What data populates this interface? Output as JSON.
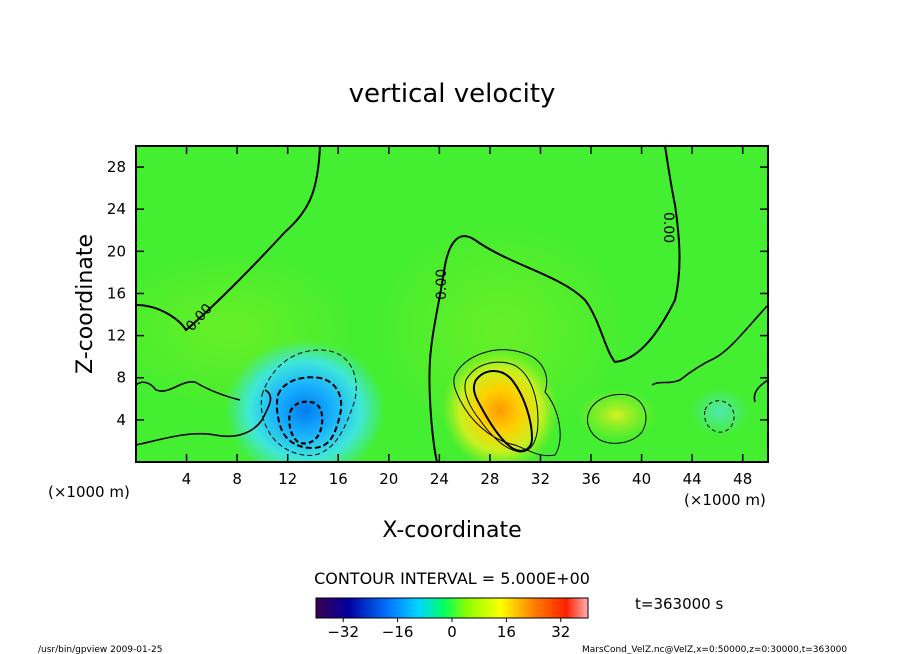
{
  "chart_data": {
    "type": "heatmap",
    "title": "vertical velocity",
    "xlabel": "X-coordinate",
    "ylabel": "Z-coordinate",
    "x_unit": "(×1000 m)",
    "y_unit": "(×1000 m)",
    "x_range": [
      0,
      50
    ],
    "y_range": [
      0,
      30
    ],
    "x_ticks": [
      4,
      8,
      12,
      16,
      20,
      24,
      28,
      32,
      36,
      40,
      44,
      48
    ],
    "y_ticks": [
      4,
      8,
      12,
      16,
      20,
      24,
      28
    ],
    "contour_interval": "CONTOUR INTERVAL = 5.000E+00",
    "contour_labels": [
      "0.00",
      "0.00",
      "0.00"
    ],
    "colorbar": {
      "range": [
        -40,
        40
      ],
      "ticks": [
        -32,
        -16,
        0,
        16,
        32
      ],
      "colors": [
        "#3a0050",
        "#0000a0",
        "#0070ff",
        "#00d8ff",
        "#00ff60",
        "#90ff00",
        "#ffff00",
        "#ff8000",
        "#ff2000",
        "#ffb0b0"
      ]
    },
    "features": [
      {
        "kind": "downdraft",
        "x": 13.5,
        "z": 3.5,
        "min_value": -27
      },
      {
        "kind": "updraft",
        "x": 29.8,
        "z": 4.5,
        "max_value": 22
      },
      {
        "kind": "updraft",
        "x": 37.5,
        "z": 4.5,
        "max_value": 7
      },
      {
        "kind": "downdraft",
        "x": 46.5,
        "z": 4.5,
        "min_value": -6
      }
    ],
    "time_label": "t=363000 s"
  },
  "footer": {
    "left": "/usr/bin/gpview   2009-01-25",
    "right": "MarsCond_VelZ.nc@VelZ,x=0:50000,z=0:30000,t=363000"
  }
}
